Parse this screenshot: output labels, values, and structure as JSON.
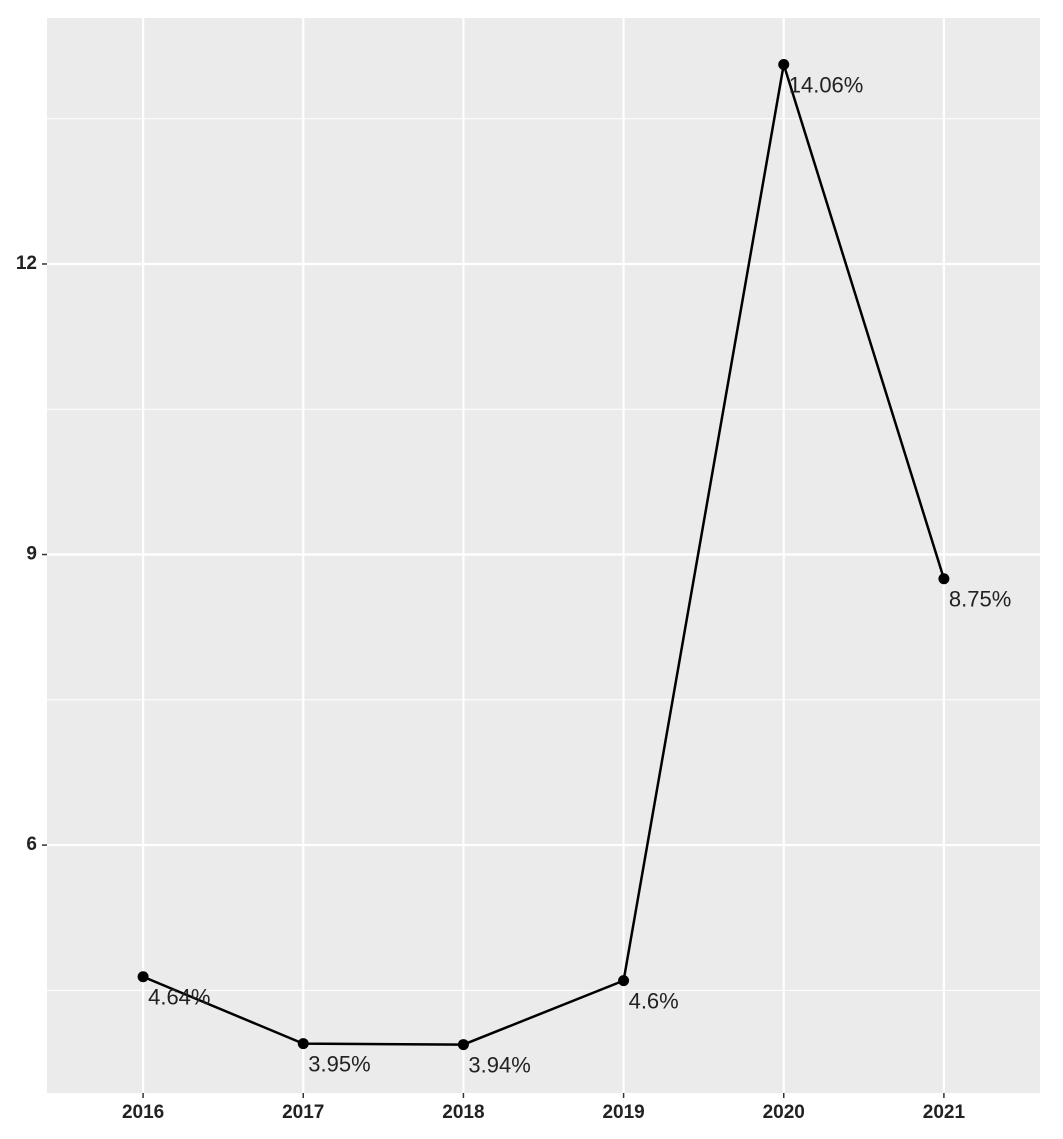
{
  "chart_data": {
    "type": "line",
    "categories": [
      "2016",
      "2017",
      "2018",
      "2019",
      "2020",
      "2021"
    ],
    "values": [
      4.64,
      3.95,
      3.94,
      4.6,
      14.06,
      8.75
    ],
    "value_labels": [
      "4.64%",
      "3.95%",
      "3.94%",
      "4.6%",
      "14.06%",
      "8.75%"
    ],
    "color": "#000000",
    "ylim": [
      3.44,
      14.54
    ],
    "yticks": [
      6,
      9,
      12
    ],
    "minor_yticks": [
      4.5,
      7.5,
      10.5,
      13.5
    ],
    "grid": true
  }
}
